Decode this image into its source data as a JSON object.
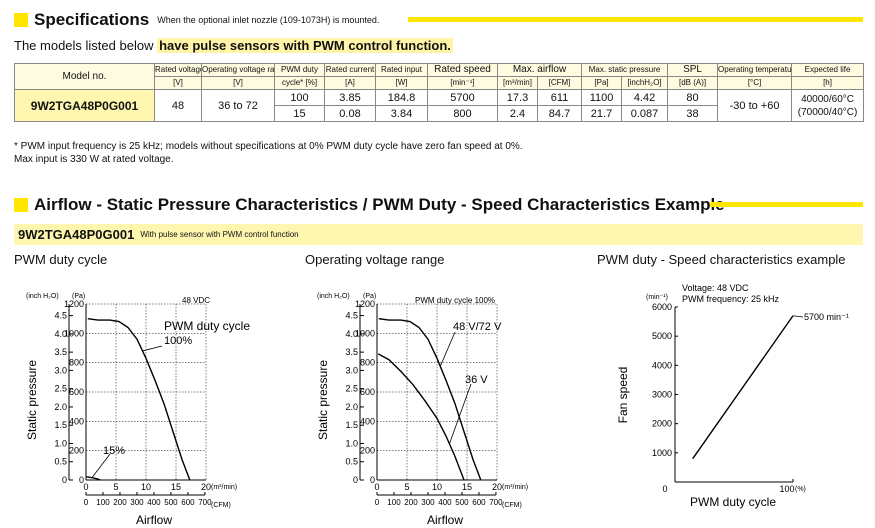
{
  "specs": {
    "title": "Specifications",
    "note": "When the optional inlet nozzle (109-1073H) is mounted.",
    "models_prefix": "The models listed below ",
    "models_highlight": "have pulse sensors with PWM control function.",
    "table": {
      "headers": [
        {
          "top": "Model no.",
          "bottom": ""
        },
        {
          "top": "Rated voltage",
          "bottom": "[V]"
        },
        {
          "top": "Operating voltage range",
          "bottom": "[V]"
        },
        {
          "top": "PWM duty",
          "bottom": "cycle* [%]"
        },
        {
          "top": "Rated current",
          "bottom": "[A]"
        },
        {
          "top": "Rated input",
          "bottom": "[W]"
        },
        {
          "top": "Rated speed",
          "bottom": "[min⁻¹]"
        },
        {
          "top": "Max. airflow",
          "bottom": [
            "[m³/min]",
            "[CFM]"
          ]
        },
        {
          "top": "Max. static pressure",
          "bottom": [
            "[Pa]",
            "[inchH₂O]"
          ]
        },
        {
          "top": "SPL",
          "bottom": "[dB (A)]"
        },
        {
          "top": "Operating temperature",
          "bottom": "[°C]"
        },
        {
          "top": "Expected life",
          "bottom": "[h]"
        }
      ],
      "model": "9W2TGA48P0G001",
      "rated_voltage": "48",
      "operating_voltage_range": "36 to 72",
      "operating_temperature": "-30 to +60",
      "expected_life": [
        "40000/60°C",
        "(70000/40°C)"
      ],
      "rows": [
        {
          "duty": "100",
          "current": "3.85",
          "input": "184.8",
          "speed": "5700",
          "airflow_m3": "17.3",
          "airflow_cfm": "611",
          "pressure_pa": "1100",
          "pressure_inch": "4.42",
          "spl": "80"
        },
        {
          "duty": "15",
          "current": "0.08",
          "input": "3.84",
          "speed": "800",
          "airflow_m3": "2.4",
          "airflow_cfm": "84.7",
          "pressure_pa": "21.7",
          "pressure_inch": "0.087",
          "spl": "38"
        }
      ]
    },
    "footnotes": [
      "* PWM input frequency is 25 kHz; models without specifications at 0% PWM duty cycle have zero fan speed at 0%.",
      "Max input is 330 W at rated voltage."
    ]
  },
  "characteristics": {
    "title": "Airflow - Static Pressure Characteristics / PWM Duty - Speed Characteristics Example",
    "model": "9W2TGA48P0G001",
    "model_note": "With pulse sensor with PWM control function",
    "chart1_title": "PWM duty cycle",
    "chart2_title": "Operating voltage range",
    "chart3_title": "PWM duty - Speed characteristics example"
  },
  "chart_data": [
    {
      "type": "line",
      "title": "PWM duty cycle",
      "xlabel": "Airflow",
      "ylabel": "Static pressure",
      "x_units": "(m³/min)",
      "x2_units": "(CFM)",
      "y_units_left": "(inch H₂O)",
      "y_units_right": "(Pa)",
      "condition": "48 VDC",
      "xlim": [
        0,
        20
      ],
      "ylim": [
        0,
        1200
      ],
      "x_ticks": [
        "0",
        "5",
        "10",
        "15",
        "20"
      ],
      "x2_ticks": [
        "0",
        "100",
        "200",
        "300",
        "400",
        "500",
        "600",
        "700"
      ],
      "y_ticks": [
        "0",
        "200",
        "400",
        "600",
        "800",
        "1000",
        "1200"
      ],
      "y2_ticks": [
        "0",
        "0.5",
        "1.0",
        "1.5",
        "2.0",
        "2.5",
        "3.0",
        "3.5",
        "4.0",
        "4.5"
      ],
      "annotation_title": "PWM duty cycle",
      "series": [
        {
          "name": "100%",
          "points": [
            [
              0.3,
              1100
            ],
            [
              2,
              1090
            ],
            [
              4,
              1090
            ],
            [
              5.5,
              1080
            ],
            [
              7,
              1040
            ],
            [
              8.5,
              960
            ],
            [
              10,
              830
            ],
            [
              11.5,
              680
            ],
            [
              13,
              520
            ],
            [
              14.5,
              330
            ],
            [
              16,
              140
            ],
            [
              17.3,
              0
            ]
          ]
        },
        {
          "name": "15%",
          "points": [
            [
              0.1,
              21.7
            ],
            [
              1,
              16
            ],
            [
              1.8,
              9
            ],
            [
              2.4,
              0
            ]
          ]
        }
      ]
    },
    {
      "type": "line",
      "title": "Operating voltage range",
      "xlabel": "Airflow",
      "ylabel": "Static pressure",
      "x_units": "(m³/min)",
      "x2_units": "(CFM)",
      "y_units_left": "(inch H₂O)",
      "y_units_right": "(Pa)",
      "condition": "PWM duty cycle 100%",
      "xlim": [
        0,
        20
      ],
      "ylim": [
        0,
        1200
      ],
      "x_ticks": [
        "0",
        "5",
        "10",
        "15",
        "20"
      ],
      "x2_ticks": [
        "0",
        "100",
        "200",
        "300",
        "400",
        "500",
        "600",
        "700"
      ],
      "y_ticks": [
        "0",
        "200",
        "400",
        "600",
        "800",
        "1000",
        "1200"
      ],
      "y2_ticks": [
        "0",
        "0.5",
        "1.0",
        "1.5",
        "2.0",
        "2.5",
        "3.0",
        "3.5",
        "4.0",
        "4.5"
      ],
      "series": [
        {
          "name": "48 V/72 V",
          "points": [
            [
              0.3,
              1100
            ],
            [
              2,
              1090
            ],
            [
              4,
              1090
            ],
            [
              5.5,
              1080
            ],
            [
              7,
              1040
            ],
            [
              8.5,
              960
            ],
            [
              10,
              830
            ],
            [
              11.5,
              680
            ],
            [
              13,
              520
            ],
            [
              14.5,
              330
            ],
            [
              16,
              140
            ],
            [
              17.3,
              0
            ]
          ]
        },
        {
          "name": "36 V",
          "points": [
            [
              0.2,
              860
            ],
            [
              2,
              820
            ],
            [
              4,
              740
            ],
            [
              6,
              650
            ],
            [
              8,
              540
            ],
            [
              10,
              420
            ],
            [
              11.5,
              300
            ],
            [
              13,
              160
            ],
            [
              14.5,
              0
            ]
          ]
        }
      ]
    },
    {
      "type": "line",
      "title": "PWM duty - Speed characteristics example",
      "xlabel": "PWM duty cycle",
      "ylabel": "Fan speed",
      "x_units": "(%)",
      "y_units": "(min⁻¹)",
      "conditions": [
        "Voltage: 48 VDC",
        "PWM frequency: 25 kHz"
      ],
      "xlim": [
        0,
        100
      ],
      "ylim": [
        0,
        6000
      ],
      "x_ticks": [
        "0",
        "100"
      ],
      "y_ticks": [
        "1000",
        "2000",
        "3000",
        "4000",
        "5000",
        "6000"
      ],
      "end_label": "5700 min⁻¹",
      "series": [
        {
          "points": [
            [
              15,
              800
            ],
            [
              100,
              5700
            ]
          ]
        }
      ]
    }
  ]
}
